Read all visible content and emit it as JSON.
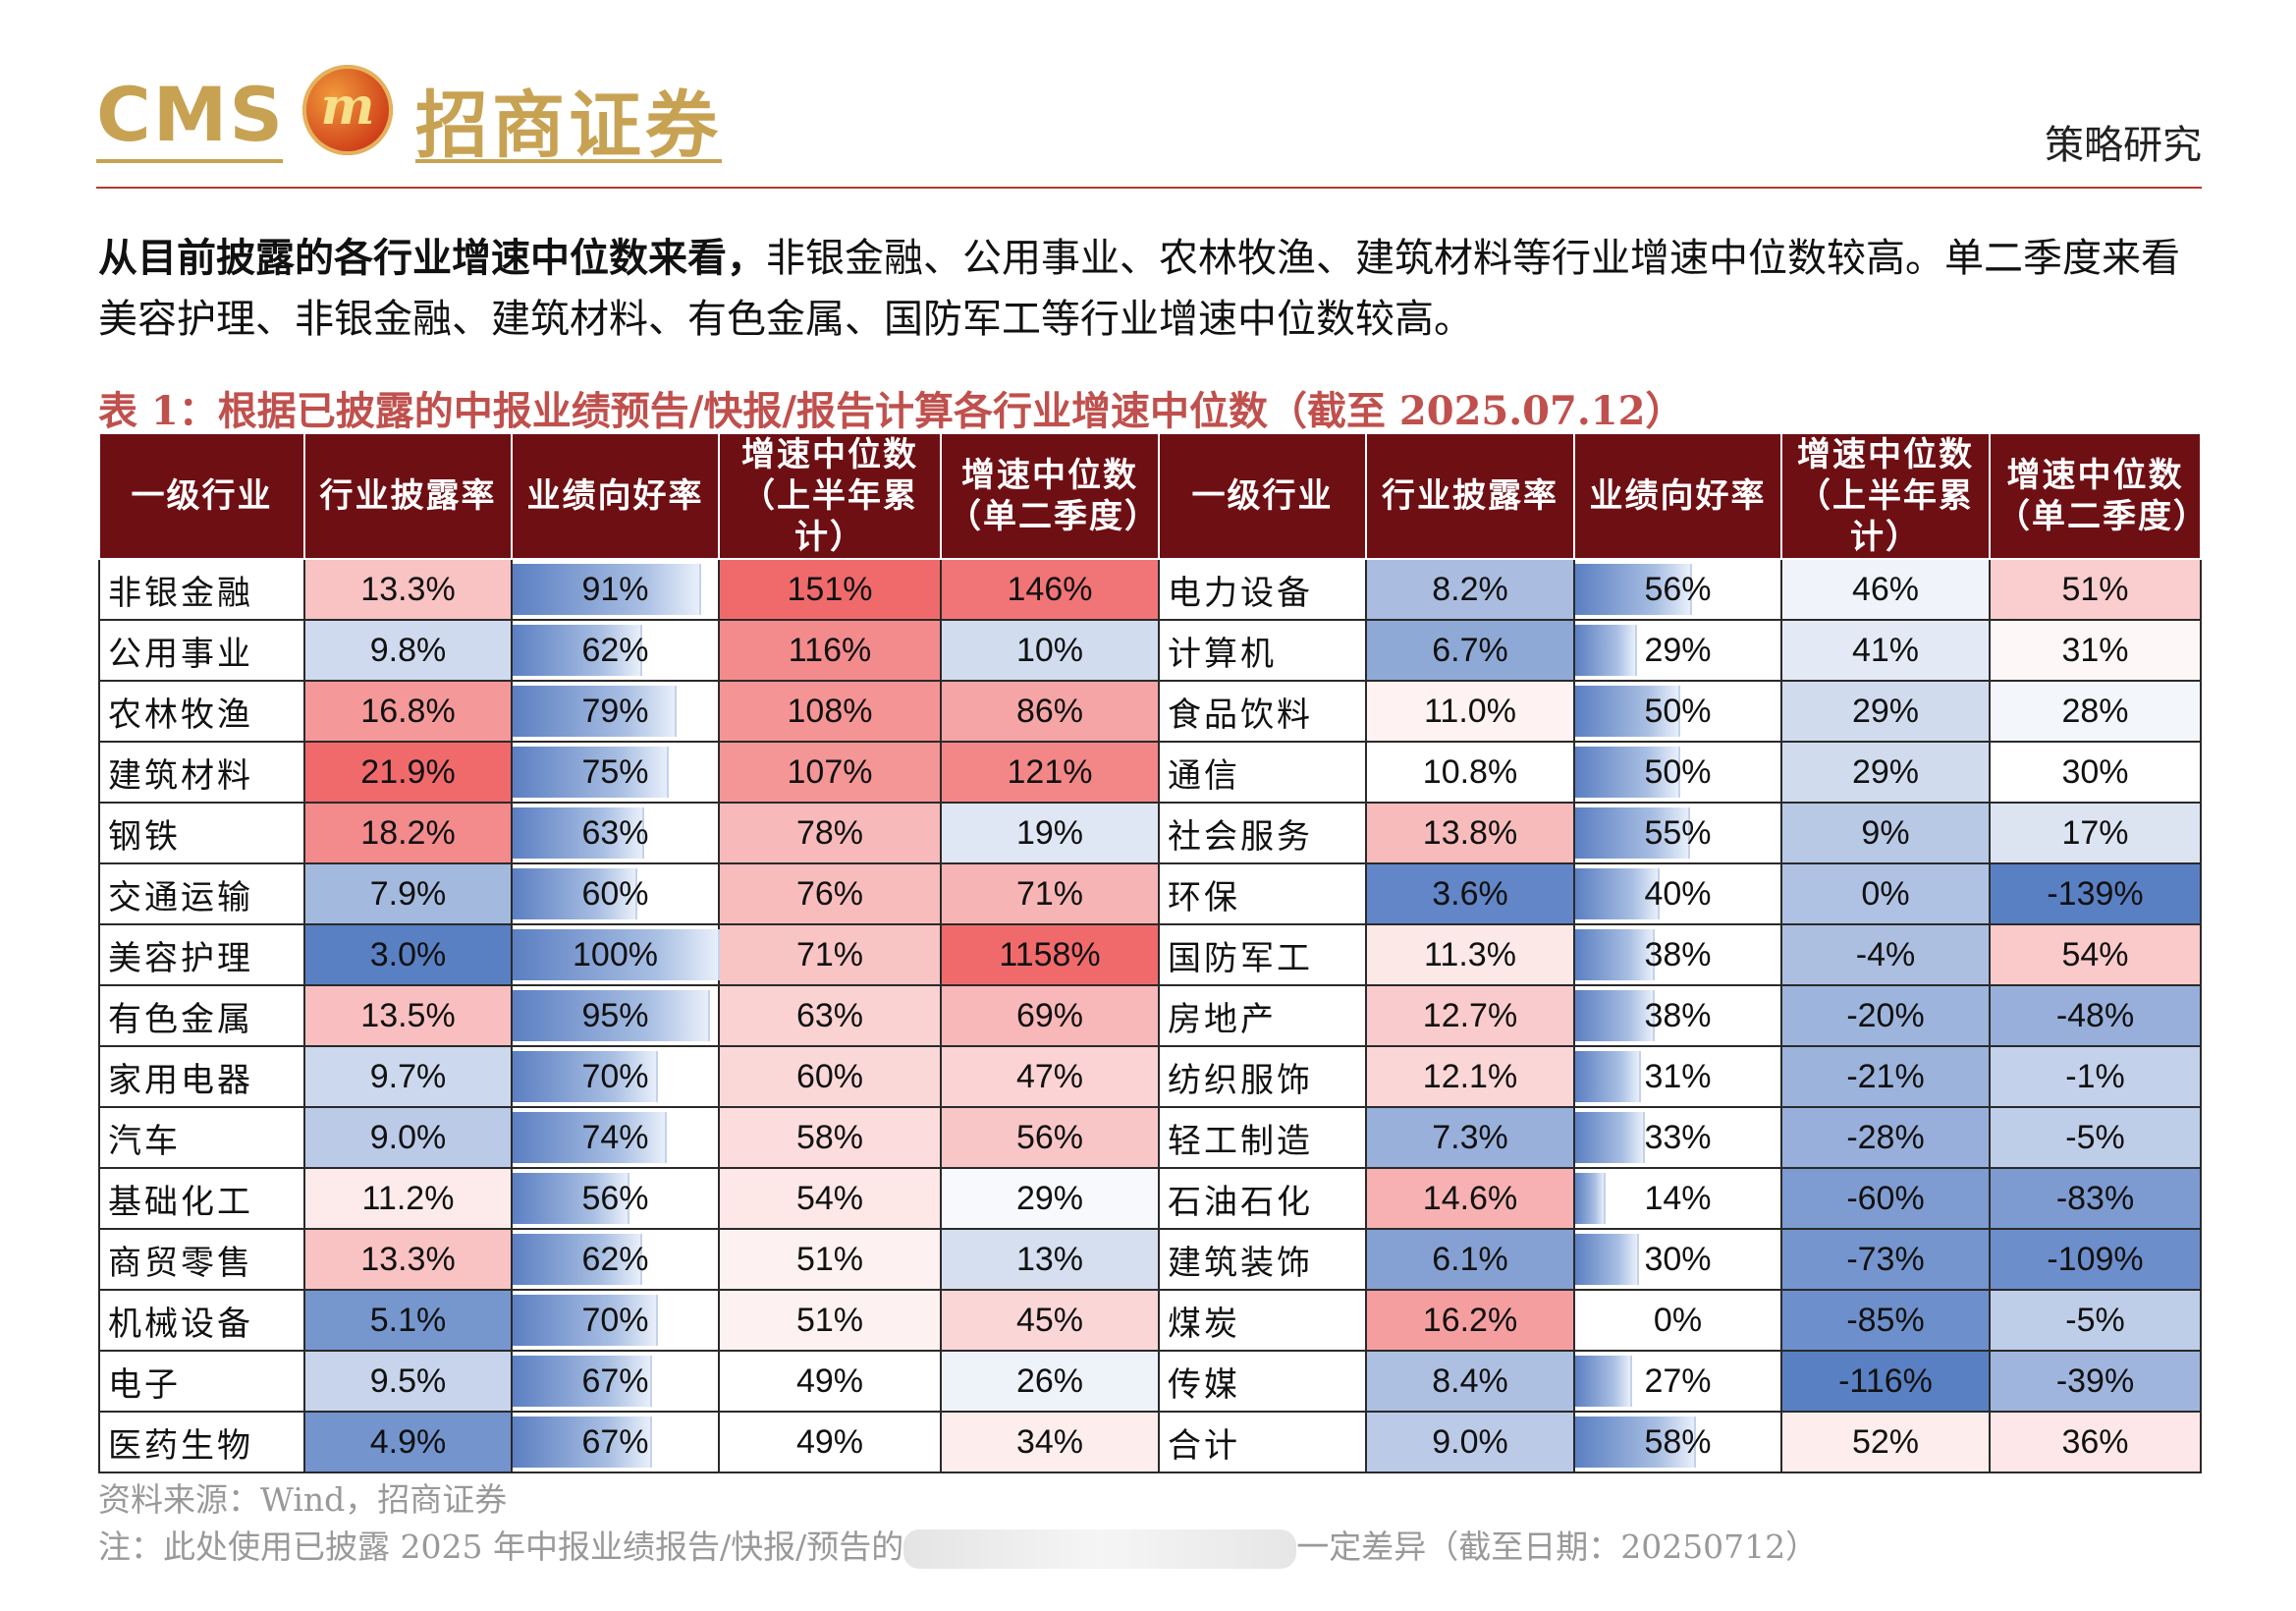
{
  "header": {
    "logo_en": "CMS",
    "logo_cn": "招商证券",
    "section": "策略研究"
  },
  "paragraph": {
    "bold": "从目前披露的各行业增速中位数来看，",
    "text": "非银金融、公用事业、农林牧渔、建筑材料等行业增速中位数较高。单二季度来看美容护理、非银金融、建筑材料、有色金属、国防军工等行业增速中位数较高。"
  },
  "table_title": "表 1：根据已披露的中报业绩预告/快报/报告计算各行业增速中位数（截至 2025.07.12）",
  "columns": [
    "一级行业",
    "行业披露率",
    "业绩向好率",
    "增速中位数（上半年累计）",
    "增速中位数（单二季度）",
    "一级行业",
    "行业披露率",
    "业绩向好率",
    "增速中位数（上半年累计）",
    "增速中位数（单二季度）"
  ],
  "rows": [
    [
      [
        "非银金融",
        "13.3%",
        "91%",
        "151%",
        "146%"
      ],
      [
        "电力设备",
        "8.2%",
        "56%",
        "46%",
        "51%"
      ]
    ],
    [
      [
        "公用事业",
        "9.8%",
        "62%",
        "116%",
        "10%"
      ],
      [
        "计算机",
        "6.7%",
        "29%",
        "41%",
        "31%"
      ]
    ],
    [
      [
        "农林牧渔",
        "16.8%",
        "79%",
        "108%",
        "86%"
      ],
      [
        "食品饮料",
        "11.0%",
        "50%",
        "29%",
        "28%"
      ]
    ],
    [
      [
        "建筑材料",
        "21.9%",
        "75%",
        "107%",
        "121%"
      ],
      [
        "通信",
        "10.8%",
        "50%",
        "29%",
        "30%"
      ]
    ],
    [
      [
        "钢铁",
        "18.2%",
        "63%",
        "78%",
        "19%"
      ],
      [
        "社会服务",
        "13.8%",
        "55%",
        "9%",
        "17%"
      ]
    ],
    [
      [
        "交通运输",
        "7.9%",
        "60%",
        "76%",
        "71%"
      ],
      [
        "环保",
        "3.6%",
        "40%",
        "0%",
        "-139%"
      ]
    ],
    [
      [
        "美容护理",
        "3.0%",
        "100%",
        "71%",
        "1158%"
      ],
      [
        "国防军工",
        "11.3%",
        "38%",
        "-4%",
        "54%"
      ]
    ],
    [
      [
        "有色金属",
        "13.5%",
        "95%",
        "63%",
        "69%"
      ],
      [
        "房地产",
        "12.7%",
        "38%",
        "-20%",
        "-48%"
      ]
    ],
    [
      [
        "家用电器",
        "9.7%",
        "70%",
        "60%",
        "47%"
      ],
      [
        "纺织服饰",
        "12.1%",
        "31%",
        "-21%",
        "-1%"
      ]
    ],
    [
      [
        "汽车",
        "9.0%",
        "74%",
        "58%",
        "56%"
      ],
      [
        "轻工制造",
        "7.3%",
        "33%",
        "-28%",
        "-5%"
      ]
    ],
    [
      [
        "基础化工",
        "11.2%",
        "56%",
        "54%",
        "29%"
      ],
      [
        "石油石化",
        "14.6%",
        "14%",
        "-60%",
        "-83%"
      ]
    ],
    [
      [
        "商贸零售",
        "13.3%",
        "62%",
        "51%",
        "13%"
      ],
      [
        "建筑装饰",
        "6.1%",
        "30%",
        "-73%",
        "-109%"
      ]
    ],
    [
      [
        "机械设备",
        "5.1%",
        "70%",
        "51%",
        "45%"
      ],
      [
        "煤炭",
        "16.2%",
        "0%",
        "-85%",
        "-5%"
      ]
    ],
    [
      [
        "电子",
        "9.5%",
        "67%",
        "49%",
        "26%"
      ],
      [
        "传媒",
        "8.4%",
        "27%",
        "-116%",
        "-39%"
      ]
    ],
    [
      [
        "医药生物",
        "4.9%",
        "67%",
        "49%",
        "34%"
      ],
      [
        "合计",
        "9.0%",
        "58%",
        "52%",
        "36%"
      ]
    ]
  ],
  "colors": {
    "header_bg": "#6e0f14",
    "title_red": "#c0504d",
    "scale_blue": "#5a80c4",
    "scale_white": "#ffffff",
    "scale_red": "#f06a6c"
  },
  "footer": {
    "source": "资料来源：Wind，招商证券",
    "note_start": "注：此处使用已披露 2025 年中报业绩报告/快报/预告的",
    "note_end": "一定差异（截至日期：20250712）"
  }
}
